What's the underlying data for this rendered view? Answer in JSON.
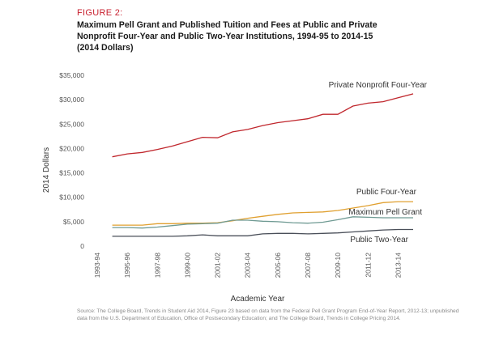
{
  "figure_label": "FIGURE 2:",
  "title": "Maximum Pell Grant and Published Tuition and Fees at Public and Private\nNonprofit Four-Year and Public Two-Year Institutions, 1994-95 to 2014-15\n(2014 Dollars)",
  "source": "Source: The College Board, Trends in Student Aid 2014, Figure 23 based on data from the Federal Pell Grant Program End-of-Year Report, 2012-13; unpublished data from the U.S. Department of Education, Office of Postsecondary Education; and The College Board, Trends in College Pricing 2014.",
  "chart_data": {
    "type": "line",
    "xlabel": "Academic Year",
    "ylabel": "2014 Dollars",
    "ylim": [
      0,
      35000
    ],
    "yticks": [
      0,
      5000,
      10000,
      15000,
      20000,
      25000,
      30000,
      35000
    ],
    "ytick_labels": [
      "0",
      "$5,000",
      "$10,000",
      "$15,000",
      "$20,000",
      "$25,000",
      "$30,000",
      "$35,000"
    ],
    "x_tick_labels": [
      "1993-94",
      "1995-96",
      "1997-98",
      "1999-00",
      "2001-02",
      "2003-04",
      "2005-06",
      "2007-08",
      "2009-10",
      "2011-12",
      "2013-14"
    ],
    "x": [
      "1994-95",
      "1995-96",
      "1996-97",
      "1997-98",
      "1998-99",
      "1999-00",
      "2000-01",
      "2001-02",
      "2002-03",
      "2003-04",
      "2004-05",
      "2005-06",
      "2006-07",
      "2007-08",
      "2008-09",
      "2009-10",
      "2010-11",
      "2011-12",
      "2012-13",
      "2013-14",
      "2014-15"
    ],
    "grid": false,
    "series": [
      {
        "name": "Private Nonprofit Four-Year",
        "color": "#c0272d",
        "values": [
          18300,
          18900,
          19200,
          19800,
          20500,
          21400,
          22300,
          22200,
          23400,
          23900,
          24700,
          25300,
          25700,
          26100,
          27000,
          27000,
          28700,
          29300,
          29600,
          30400,
          31200
        ]
      },
      {
        "name": "Public Four-Year",
        "color": "#e0a030",
        "values": [
          4300,
          4300,
          4300,
          4600,
          4600,
          4700,
          4700,
          4800,
          5200,
          5700,
          6100,
          6500,
          6800,
          6900,
          7000,
          7300,
          7800,
          8300,
          8900,
          9100,
          9100
        ]
      },
      {
        "name": "Maximum Pell Grant",
        "color": "#6f9a93",
        "values": [
          3800,
          3800,
          3700,
          3900,
          4200,
          4500,
          4600,
          4700,
          5300,
          5300,
          5100,
          5000,
          4800,
          4700,
          4900,
          5400,
          6000,
          5900,
          5800,
          5800,
          5800
        ]
      },
      {
        "name": "Public Two-Year",
        "color": "#4a4f59",
        "values": [
          2000,
          2000,
          2000,
          2000,
          2000,
          2100,
          2300,
          2100,
          2100,
          2100,
          2500,
          2600,
          2600,
          2500,
          2600,
          2700,
          2900,
          3100,
          3300,
          3400,
          3400
        ]
      }
    ]
  }
}
